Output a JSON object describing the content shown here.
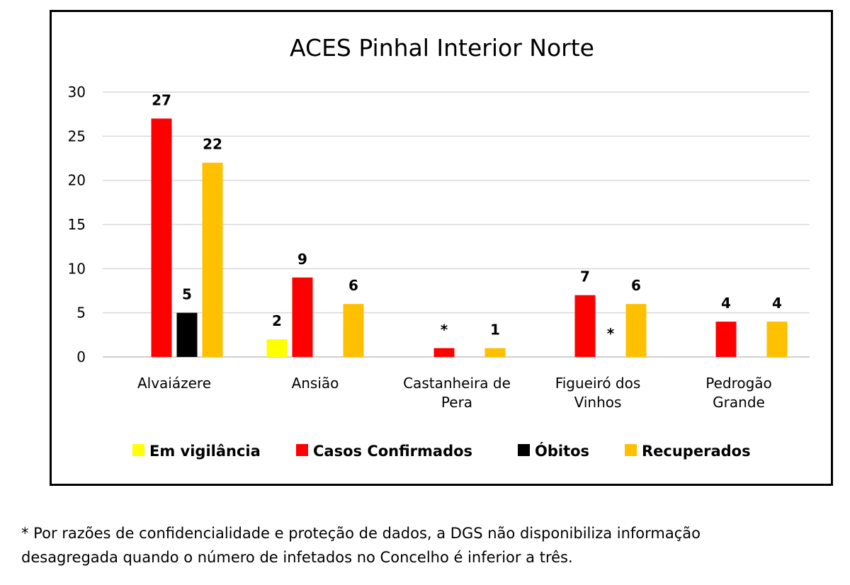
{
  "chart_data": {
    "type": "bar",
    "title": "ACES Pinhal Interior Norte",
    "xlabel": "",
    "ylabel": "",
    "ylim": [
      0,
      30
    ],
    "yticks": [
      0,
      5,
      10,
      15,
      20,
      25,
      30
    ],
    "grid": true,
    "legend_position": "bottom",
    "categories": [
      [
        "Alvaiázere"
      ],
      [
        "Ansião"
      ],
      [
        "Castanheira de",
        "Pera"
      ],
      [
        "Figueiró dos",
        "Vinhos"
      ],
      [
        "Pedrogão",
        "Grande"
      ]
    ],
    "series": [
      {
        "name": "Em vigilância",
        "color": "#ffff00",
        "values": [
          null,
          2,
          null,
          null,
          null
        ],
        "labels": [
          null,
          "2",
          null,
          null,
          null
        ]
      },
      {
        "name": "Casos Confirmados",
        "color": "#ff0000",
        "values": [
          27,
          9,
          1,
          7,
          4
        ],
        "labels": [
          "27",
          "9",
          "*",
          "7",
          "4"
        ]
      },
      {
        "name": "Óbitos",
        "color": "#000000",
        "values": [
          5,
          null,
          null,
          null,
          null
        ],
        "labels": [
          "5",
          null,
          null,
          "*",
          null
        ]
      },
      {
        "name": "Recuperados",
        "color": "#ffc000",
        "values": [
          22,
          6,
          1,
          6,
          4
        ],
        "labels": [
          "22",
          "6",
          "1",
          "6",
          "4"
        ]
      }
    ]
  },
  "footnote": {
    "line1": "* Por razões de confidencialidade e proteção de dados, a DGS não disponibiliza informação",
    "line2": "desagregada quando o número de infetados no Concelho é inferior a três."
  }
}
